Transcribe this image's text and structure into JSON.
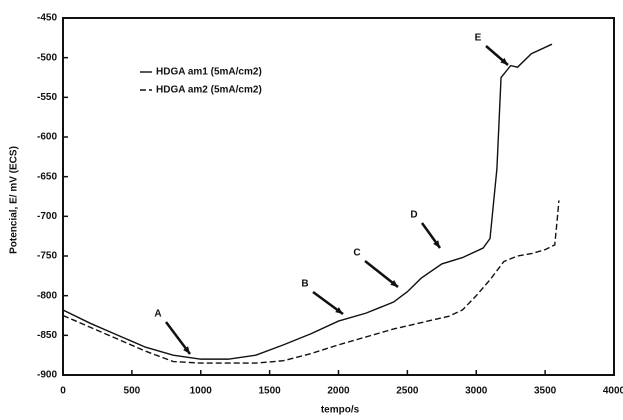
{
  "chart_data": {
    "type": "line",
    "x_label": "tempo/s",
    "y_label": "Potencial, E/ mV (ECS)",
    "xlim": [
      0,
      4000
    ],
    "xticks": [
      0,
      500,
      1000,
      1500,
      2000,
      2500,
      3000,
      3500,
      4000
    ],
    "ylim": [
      -900,
      -450
    ],
    "yticks": [
      -900,
      -850,
      -800,
      -750,
      -700,
      -650,
      -600,
      -550,
      -500,
      -450
    ],
    "series": [
      {
        "name": "HDGA am1 (5mA/cm2)",
        "color": "#111111",
        "x": [
          0,
          200,
          400,
          600,
          800,
          1000,
          1200,
          1400,
          1600,
          1800,
          2000,
          2200,
          2400,
          2500,
          2600,
          2750,
          2900,
          3050,
          3100,
          3150,
          3180,
          3250,
          3300,
          3400,
          3550
        ],
        "values": [
          -818,
          -835,
          -850,
          -865,
          -875,
          -880,
          -880,
          -875,
          -862,
          -848,
          -832,
          -822,
          -808,
          -795,
          -778,
          -760,
          -752,
          -740,
          -728,
          -640,
          -525,
          -510,
          -512,
          -495,
          -483
        ]
      },
      {
        "name": "HDGA am2 (5mA/cm2)",
        "color": "#111111",
        "x": [
          0,
          200,
          400,
          600,
          800,
          1000,
          1200,
          1400,
          1600,
          1800,
          2000,
          2200,
          2400,
          2600,
          2800,
          2900,
          3000,
          3100,
          3200,
          3300,
          3400,
          3500,
          3570,
          3590,
          3600
        ],
        "values": [
          -825,
          -840,
          -855,
          -870,
          -883,
          -885,
          -885,
          -885,
          -882,
          -873,
          -862,
          -852,
          -842,
          -834,
          -826,
          -818,
          -800,
          -780,
          -757,
          -750,
          -747,
          -742,
          -736,
          -700,
          -680
        ]
      }
    ],
    "annotations": [
      "A",
      "B",
      "C",
      "D",
      "E"
    ]
  }
}
